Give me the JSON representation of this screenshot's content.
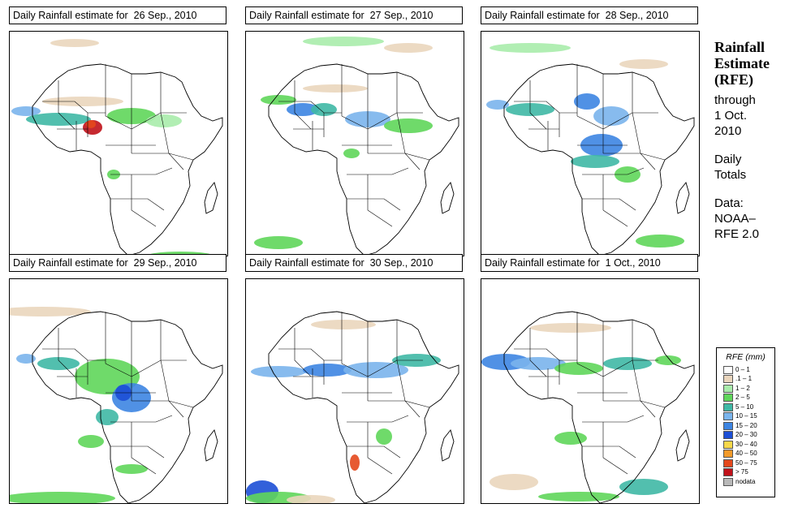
{
  "panels": [
    {
      "title": "Daily Rainfall estimate for  26 Sep., 2010",
      "pattern": 0
    },
    {
      "title": "Daily Rainfall estimate for  27 Sep., 2010",
      "pattern": 1
    },
    {
      "title": "Daily Rainfall estimate for  28 Sep., 2010",
      "pattern": 2
    },
    {
      "title": "Daily Rainfall estimate for  29 Sep., 2010",
      "pattern": 3
    },
    {
      "title": "Daily Rainfall estimate for  30 Sep., 2010",
      "pattern": 4
    },
    {
      "title": "Daily Rainfall estimate for  1 Oct., 2010",
      "pattern": 5
    }
  ],
  "side": {
    "heading_line1": "Rainfall",
    "heading_line2": "Estimate",
    "heading_line3": "(RFE)",
    "through": "through",
    "date_line1": "1 Oct.",
    "date_line2": "2010",
    "daily": "Daily",
    "totals": "Totals",
    "data_label": "Data:",
    "source_line1": "NOAA–",
    "source_line2": "RFE 2.0"
  },
  "legend": {
    "title": "RFE (mm)",
    "items": [
      {
        "label": "0 – 1",
        "color": "#ffffff"
      },
      {
        "label": ".1 – 1",
        "color": "#ead6bd"
      },
      {
        "label": "1 – 2",
        "color": "#a9ecab"
      },
      {
        "label": "2 – 5",
        "color": "#5fd65a"
      },
      {
        "label": "5 – 10",
        "color": "#3fb8a5"
      },
      {
        "label": "10 – 15",
        "color": "#7ab4ec"
      },
      {
        "label": "15 – 20",
        "color": "#3d85e2"
      },
      {
        "label": "20 – 30",
        "color": "#1c4fd6"
      },
      {
        "label": "30 – 40",
        "color": "#f7d84a"
      },
      {
        "label": "40 – 50",
        "color": "#f29a2a"
      },
      {
        "label": "50 – 75",
        "color": "#e4481c"
      },
      {
        "label": "> 75",
        "color": "#c0121a"
      },
      {
        "label": "nodata",
        "color": "#b9b9b9"
      }
    ]
  }
}
